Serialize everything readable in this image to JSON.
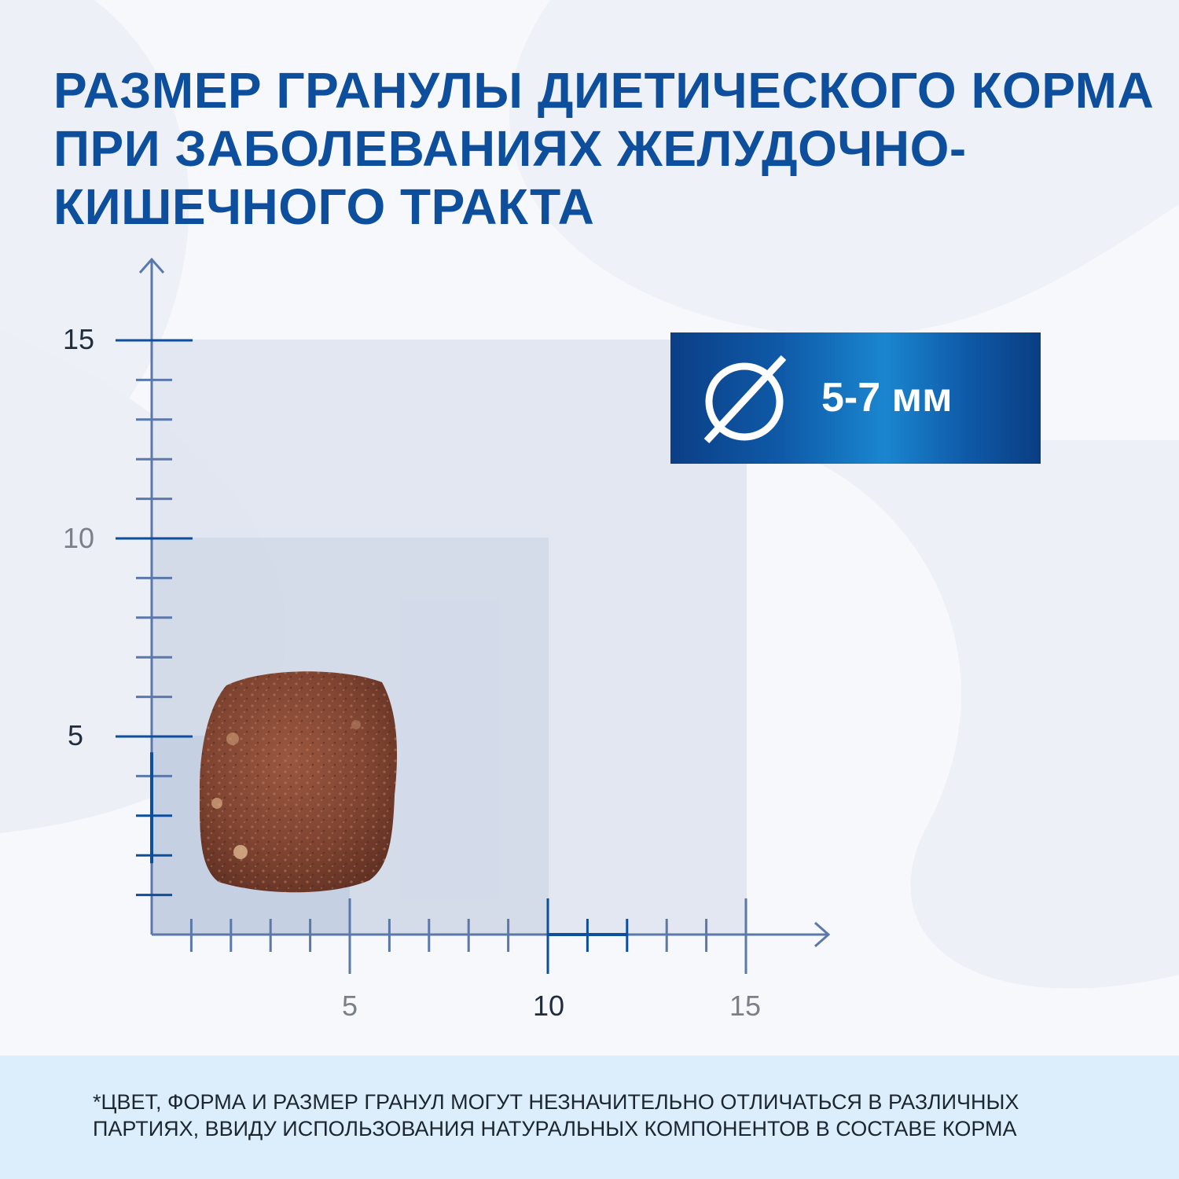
{
  "title": {
    "line1": "РАЗМЕР ГРАНУЛЫ ДИЕТИЧЕСКОГО КОРМА",
    "line2": "ПРИ ЗАБОЛЕВАНИЯХ ЖЕЛУДОЧНО-",
    "line3": "КИШЕЧНОГО ТРАКТА"
  },
  "badge": {
    "icon": "diameter-icon",
    "value": "5-7 мм"
  },
  "axes": {
    "y_labels": [
      "15",
      "10",
      "5"
    ],
    "x_labels": [
      "5",
      "10",
      "15"
    ]
  },
  "kibble": {
    "icon": "kibble-image",
    "color": "#8a4a35"
  },
  "footnote": {
    "line1": "*ЦВЕТ, ФОРМА И РАЗМЕР ГРАНУЛ МОГУТ НЕЗНАЧИТЕЛЬНО ОТЛИЧАТЬСЯ  В РАЗЛИЧНЫХ",
    "line2": "ПАРТИЯХ, ВВИДУ ИСПОЛЬЗОВАНИЯ НАТУРАЛЬНЫХ КОМПОНЕНТОВ В СОСТАВЕ  КОРМА"
  },
  "colors": {
    "brand_blue": "#0d4f9c",
    "axis_blue": "#5b78ab",
    "footer_bg": "#dceefb"
  }
}
